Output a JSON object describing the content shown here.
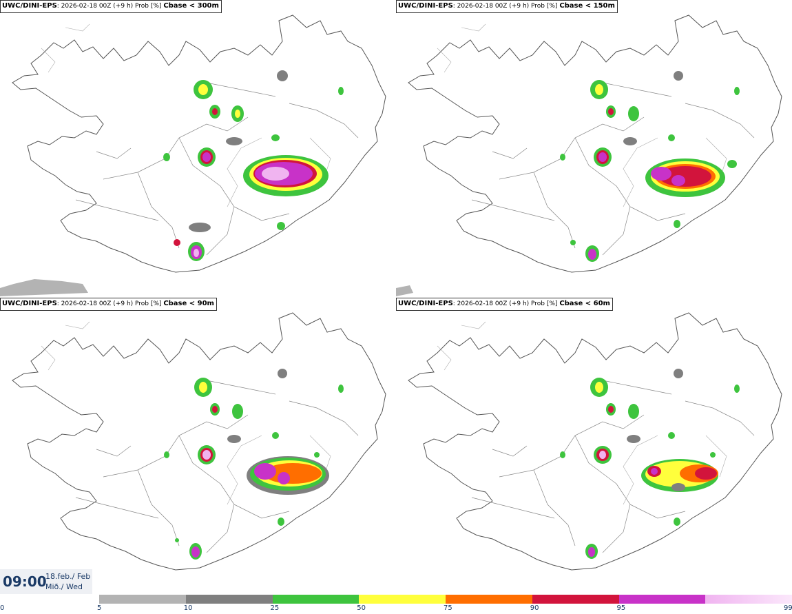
{
  "panels": [
    {
      "model": "UWC/DINI-EPS",
      "info": ": 2026-02-18 00Z (+9 h) Prob [%] ",
      "var": "Cbase < 300m"
    },
    {
      "model": "UWC/DINI-EPS",
      "info": ": 2026-02-18 00Z (+9 h) Prob [%] ",
      "var": "Cbase < 150m"
    },
    {
      "model": "UWC/DINI-EPS",
      "info": ": 2026-02-18 00Z (+9 h) Prob [%] ",
      "var": "Cbase < 90m"
    },
    {
      "model": "UWC/DINI-EPS",
      "info": ": 2026-02-18 00Z (+9 h) Prob [%] ",
      "var": "Cbase < 60m"
    }
  ],
  "time": {
    "hour": "09:00",
    "date": "18.feb./ Feb",
    "weekday": "Mið./ Wed"
  },
  "colorbar": {
    "ticks": [
      "0",
      "5",
      "10",
      "25",
      "50",
      "75",
      "90",
      "95",
      "99"
    ],
    "colors": [
      "#b3b3b3",
      "#7f7f7f",
      "#3ec43e",
      "#ffff3c",
      "#ff6e00",
      "#d2143c",
      "#c832c8",
      "#f0b4f0"
    ]
  }
}
